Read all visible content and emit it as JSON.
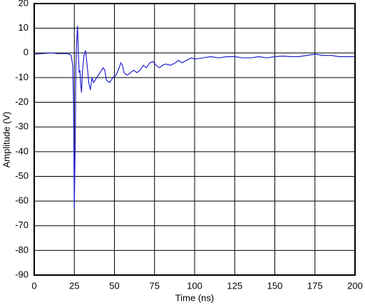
{
  "chart_data": {
    "type": "line",
    "x_label": "Time (ns)",
    "y_label": "Amplitude (V)",
    "x": [
      0,
      5,
      10,
      15,
      20,
      22,
      23,
      24,
      24.5,
      25,
      25.5,
      26,
      26.5,
      27,
      27.5,
      28,
      28.5,
      29,
      29.5,
      30,
      31,
      32,
      33,
      34,
      35,
      36,
      37,
      38,
      40,
      42,
      43,
      44,
      45,
      47,
      49,
      51,
      53,
      54,
      55,
      56,
      58,
      60,
      62,
      64,
      66,
      68,
      70,
      72,
      74,
      76,
      78,
      80,
      82,
      85,
      88,
      90,
      92,
      95,
      98,
      100,
      105,
      110,
      115,
      120,
      125,
      130,
      135,
      140,
      145,
      150,
      155,
      160,
      165,
      170,
      175,
      180,
      185,
      190,
      195,
      200
    ],
    "series": [
      {
        "name": "Amplitude",
        "color": "#2323d0",
        "values": [
          -0.5,
          -0.3,
          0,
          -0.3,
          -0.3,
          -0.5,
          -1,
          -5,
          -20,
          -63,
          -40,
          -5,
          5,
          11,
          0,
          -8,
          -7,
          -13,
          -16,
          -8,
          -1,
          1,
          -5,
          -12,
          -15,
          -10,
          -12,
          -11,
          -9,
          -7,
          -6,
          -7,
          -11,
          -12,
          -10,
          -9,
          -6,
          -4,
          -5,
          -8,
          -9,
          -8,
          -7,
          -8,
          -7,
          -5,
          -6,
          -4,
          -3.5,
          -5,
          -6,
          -5,
          -4.5,
          -5,
          -4,
          -3,
          -4,
          -3,
          -2,
          -2.5,
          -2,
          -1.5,
          -2,
          -1.5,
          -1.5,
          -2,
          -2,
          -1.5,
          -2,
          -1.5,
          -1.3,
          -1.5,
          -1.5,
          -1,
          -0.5,
          -1,
          -1,
          -1.5,
          -1.5,
          -1.5
        ]
      }
    ],
    "xlim": [
      0,
      200
    ],
    "xticks": [
      0,
      25,
      50,
      75,
      100,
      125,
      150,
      175,
      200
    ],
    "ylim": [
      -90,
      20
    ],
    "yticks": [
      -90,
      -80,
      -70,
      -60,
      -50,
      -40,
      -30,
      -20,
      -10,
      0,
      10,
      20
    ],
    "grid": true
  }
}
